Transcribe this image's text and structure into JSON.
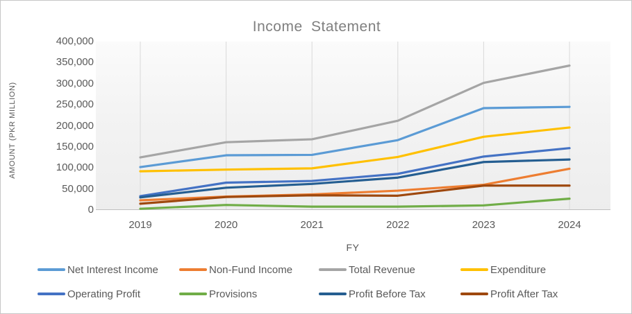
{
  "title": "Income Statement",
  "axes": {
    "y_title": "AMOUNT (PKR MILLION)",
    "x_title": "FY",
    "y_tick_labels": [
      "0",
      "50,000",
      "100,000",
      "150,000",
      "200,000",
      "250,000",
      "300,000",
      "350,000",
      "400,000"
    ],
    "x_tick_labels": [
      "2019",
      "2020",
      "2021",
      "2022",
      "2023",
      "2024"
    ]
  },
  "colors": {
    "title_text": "#7f7f7f",
    "axis_text": "#595959",
    "gridline": "#d9d9d9",
    "axis_line": "#bfbfbf"
  },
  "chart_data": {
    "type": "line",
    "title": "Income Statement",
    "xlabel": "FY",
    "ylabel": "AMOUNT (PKR MILLION)",
    "categories": [
      "2019",
      "2020",
      "2021",
      "2022",
      "2023",
      "2024"
    ],
    "ylim": [
      0,
      400000
    ],
    "y_tick_interval": 50000,
    "grid": "vertical-only",
    "legend_position": "bottom",
    "series": [
      {
        "name": "Net Interest Income",
        "color": "#5B9BD5",
        "values": [
          102000,
          130000,
          131000,
          166000,
          242000,
          245000
        ]
      },
      {
        "name": "Non-Fund Income",
        "color": "#ED7D31",
        "values": [
          23000,
          32000,
          37000,
          46000,
          60000,
          98000
        ]
      },
      {
        "name": "Total Revenue",
        "color": "#A5A5A5",
        "values": [
          125000,
          161000,
          168000,
          212000,
          302000,
          343000
        ]
      },
      {
        "name": "Expenditure",
        "color": "#FFC000",
        "values": [
          92000,
          96000,
          99000,
          126000,
          174000,
          196000
        ]
      },
      {
        "name": "Operating Profit",
        "color": "#4472C4",
        "values": [
          33000,
          65000,
          69000,
          86000,
          127000,
          147000
        ]
      },
      {
        "name": "Provisions",
        "color": "#70AD47",
        "values": [
          3000,
          12000,
          8000,
          8000,
          11000,
          27000
        ]
      },
      {
        "name": "Profit Before Tax",
        "color": "#255E91",
        "values": [
          30000,
          53000,
          62000,
          77000,
          114000,
          120000
        ]
      },
      {
        "name": "Profit After Tax",
        "color": "#9E480E",
        "values": [
          15000,
          31000,
          35000,
          34000,
          58000,
          58000
        ]
      }
    ]
  }
}
